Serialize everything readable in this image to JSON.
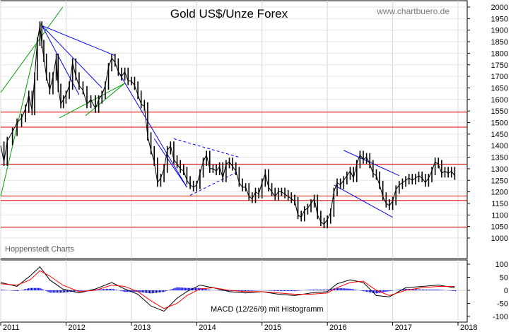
{
  "chart_data": [
    {
      "type": "line",
      "subtype": "candlestick",
      "title": "Gold US$/Unze Forex",
      "watermark": "www.chartbuero.de",
      "source": "Hoppenstedt Charts",
      "x_axis": {
        "labels": [
          "2011",
          "2012",
          "2013",
          "2014",
          "2015",
          "2016",
          "2017",
          "2018"
        ],
        "range": [
          2011.0,
          2018.0
        ]
      },
      "y_axis": {
        "range": [
          1000,
          2000
        ],
        "position": "right",
        "step": 50,
        "tick_labels": [
          "1000",
          "1050",
          "1100",
          "1150",
          "1200",
          "1250",
          "1300",
          "1350",
          "1400",
          "1450",
          "1500",
          "1550",
          "1600",
          "1650",
          "1700",
          "1750",
          "1800",
          "1850",
          "1900",
          "1950",
          "2000"
        ]
      },
      "horizontal_lines": [
        1545,
        1480,
        1320,
        1182,
        1163,
        1047
      ],
      "series": [
        {
          "color": "#000000",
          "points": [
            [
              2011.0,
              1400
            ],
            [
              2011.05,
              1330
            ],
            [
              2011.1,
              1420
            ],
            [
              2011.18,
              1460
            ],
            [
              2011.25,
              1500
            ],
            [
              2011.32,
              1520
            ],
            [
              2011.38,
              1560
            ],
            [
              2011.43,
              1620
            ],
            [
              2011.48,
              1550
            ],
            [
              2011.52,
              1700
            ],
            [
              2011.56,
              1850
            ],
            [
              2011.6,
              1920
            ],
            [
              2011.63,
              1840
            ],
            [
              2011.66,
              1780
            ],
            [
              2011.7,
              1700
            ],
            [
              2011.75,
              1640
            ],
            [
              2011.8,
              1700
            ],
            [
              2011.85,
              1780
            ],
            [
              2011.88,
              1650
            ],
            [
              2011.92,
              1580
            ],
            [
              2011.96,
              1600
            ],
            [
              2012.0,
              1620
            ],
            [
              2012.05,
              1660
            ],
            [
              2012.1,
              1760
            ],
            [
              2012.15,
              1700
            ],
            [
              2012.2,
              1660
            ],
            [
              2012.26,
              1640
            ],
            [
              2012.32,
              1580
            ],
            [
              2012.38,
              1600
            ],
            [
              2012.45,
              1560
            ],
            [
              2012.5,
              1600
            ],
            [
              2012.55,
              1620
            ],
            [
              2012.6,
              1660
            ],
            [
              2012.65,
              1740
            ],
            [
              2012.7,
              1780
            ],
            [
              2012.75,
              1760
            ],
            [
              2012.8,
              1720
            ],
            [
              2012.85,
              1700
            ],
            [
              2012.9,
              1720
            ],
            [
              2012.95,
              1680
            ],
            [
              2013.0,
              1680
            ],
            [
              2013.05,
              1660
            ],
            [
              2013.1,
              1620
            ],
            [
              2013.15,
              1580
            ],
            [
              2013.2,
              1570
            ],
            [
              2013.25,
              1440
            ],
            [
              2013.3,
              1380
            ],
            [
              2013.35,
              1330
            ],
            [
              2013.4,
              1240
            ],
            [
              2013.45,
              1260
            ],
            [
              2013.5,
              1300
            ],
            [
              2013.55,
              1380
            ],
            [
              2013.6,
              1400
            ],
            [
              2013.65,
              1340
            ],
            [
              2013.7,
              1320
            ],
            [
              2013.75,
              1300
            ],
            [
              2013.8,
              1290
            ],
            [
              2013.85,
              1250
            ],
            [
              2013.9,
              1230
            ],
            [
              2013.95,
              1220
            ],
            [
              2014.0,
              1230
            ],
            [
              2014.05,
              1280
            ],
            [
              2014.1,
              1330
            ],
            [
              2014.15,
              1360
            ],
            [
              2014.2,
              1300
            ],
            [
              2014.25,
              1300
            ],
            [
              2014.3,
              1290
            ],
            [
              2014.35,
              1310
            ],
            [
              2014.4,
              1260
            ],
            [
              2014.45,
              1320
            ],
            [
              2014.5,
              1330
            ],
            [
              2014.55,
              1310
            ],
            [
              2014.6,
              1290
            ],
            [
              2014.65,
              1240
            ],
            [
              2014.7,
              1220
            ],
            [
              2014.75,
              1220
            ],
            [
              2014.8,
              1180
            ],
            [
              2014.85,
              1170
            ],
            [
              2014.9,
              1200
            ],
            [
              2014.95,
              1190
            ],
            [
              2015.0,
              1240
            ],
            [
              2015.05,
              1280
            ],
            [
              2015.1,
              1220
            ],
            [
              2015.15,
              1200
            ],
            [
              2015.2,
              1180
            ],
            [
              2015.25,
              1200
            ],
            [
              2015.3,
              1200
            ],
            [
              2015.35,
              1190
            ],
            [
              2015.4,
              1180
            ],
            [
              2015.45,
              1170
            ],
            [
              2015.5,
              1160
            ],
            [
              2015.55,
              1100
            ],
            [
              2015.6,
              1090
            ],
            [
              2015.65,
              1120
            ],
            [
              2015.7,
              1130
            ],
            [
              2015.75,
              1150
            ],
            [
              2015.8,
              1170
            ],
            [
              2015.85,
              1100
            ],
            [
              2015.9,
              1070
            ],
            [
              2015.95,
              1060
            ],
            [
              2016.0,
              1080
            ],
            [
              2016.05,
              1110
            ],
            [
              2016.1,
              1200
            ],
            [
              2016.15,
              1240
            ],
            [
              2016.2,
              1230
            ],
            [
              2016.25,
              1250
            ],
            [
              2016.3,
              1270
            ],
            [
              2016.35,
              1290
            ],
            [
              2016.4,
              1260
            ],
            [
              2016.45,
              1320
            ],
            [
              2016.5,
              1360
            ],
            [
              2016.55,
              1340
            ],
            [
              2016.6,
              1350
            ],
            [
              2016.65,
              1320
            ],
            [
              2016.7,
              1280
            ],
            [
              2016.75,
              1270
            ],
            [
              2016.8,
              1230
            ],
            [
              2016.85,
              1180
            ],
            [
              2016.9,
              1150
            ],
            [
              2016.95,
              1140
            ],
            [
              2017.0,
              1160
            ],
            [
              2017.05,
              1210
            ],
            [
              2017.1,
              1230
            ],
            [
              2017.15,
              1240
            ],
            [
              2017.2,
              1250
            ],
            [
              2017.25,
              1260
            ],
            [
              2017.3,
              1250
            ],
            [
              2017.35,
              1260
            ],
            [
              2017.4,
              1270
            ],
            [
              2017.45,
              1260
            ],
            [
              2017.5,
              1240
            ],
            [
              2017.55,
              1260
            ],
            [
              2017.6,
              1290
            ],
            [
              2017.65,
              1330
            ],
            [
              2017.7,
              1320
            ],
            [
              2017.75,
              1280
            ],
            [
              2017.8,
              1290
            ],
            [
              2017.85,
              1280
            ],
            [
              2017.9,
              1290
            ],
            [
              2017.95,
              1270
            ]
          ]
        }
      ],
      "trend_lines": [
        {
          "color": "#00a000",
          "style": "solid",
          "points": [
            [
              2011.0,
              1180
            ],
            [
              2011.62,
              1930
            ]
          ]
        },
        {
          "color": "#00a000",
          "style": "solid",
          "points": [
            [
              2011.0,
              1630
            ],
            [
              2011.95,
              2000
            ]
          ]
        },
        {
          "color": "#00a000",
          "style": "solid",
          "points": [
            [
              2011.9,
              1520
            ],
            [
              2012.9,
              1670
            ]
          ]
        },
        {
          "color": "#00a000",
          "style": "solid",
          "points": [
            [
              2012.3,
              1530
            ],
            [
              2012.9,
              1670
            ]
          ]
        },
        {
          "color": "#0000ff",
          "style": "solid",
          "points": [
            [
              2011.63,
              1920
            ],
            [
              2012.75,
              1790
            ]
          ]
        },
        {
          "color": "#0000ff",
          "style": "solid",
          "points": [
            [
              2011.63,
              1920
            ],
            [
              2012.55,
              1650
            ]
          ]
        },
        {
          "color": "#0000ff",
          "style": "solid",
          "points": [
            [
              2011.63,
              1920
            ],
            [
              2012.2,
              1620
            ]
          ]
        },
        {
          "color": "#0000ff",
          "style": "solid",
          "points": [
            [
              2012.8,
              1720
            ],
            [
              2013.85,
              1220
            ]
          ]
        },
        {
          "color": "#0000ff",
          "style": "solid",
          "points": [
            [
              2013.35,
              1430
            ],
            [
              2013.85,
              1220
            ]
          ]
        },
        {
          "color": "#0000ff",
          "style": "dashed",
          "points": [
            [
              2013.65,
              1430
            ],
            [
              2014.65,
              1350
            ]
          ]
        },
        {
          "color": "#0000ff",
          "style": "dashed",
          "points": [
            [
              2013.9,
              1185
            ],
            [
              2014.65,
              1290
            ]
          ]
        },
        {
          "color": "#0000ff",
          "style": "solid",
          "points": [
            [
              2016.25,
              1380
            ],
            [
              2017.1,
              1270
            ]
          ]
        },
        {
          "color": "#0000ff",
          "style": "solid",
          "points": [
            [
              2016.1,
              1230
            ],
            [
              2017.0,
              1090
            ]
          ]
        }
      ]
    },
    {
      "type": "line",
      "title": "",
      "label": "MACD (12/26/9) mit Histogramm",
      "y_axis": {
        "range": [
          -100,
          100
        ],
        "position": "right",
        "tick_labels": [
          "-100",
          "-50",
          "0",
          "50",
          "100"
        ]
      },
      "series": [
        {
          "color": "#000000",
          "x": [
            2011.0,
            2011.25,
            2011.45,
            2011.6,
            2011.75,
            2011.95,
            2012.2,
            2012.45,
            2012.7,
            2012.9,
            2013.1,
            2013.3,
            2013.5,
            2013.7,
            2013.85,
            2014.05,
            2014.25,
            2014.5,
            2014.75,
            2015.0,
            2015.25,
            2015.5,
            2015.75,
            2016.0,
            2016.15,
            2016.35,
            2016.55,
            2016.75,
            2016.95,
            2017.2,
            2017.45,
            2017.7,
            2017.95
          ],
          "values": [
            30,
            15,
            55,
            90,
            40,
            5,
            -10,
            5,
            30,
            5,
            -15,
            -60,
            -80,
            -30,
            -5,
            20,
            10,
            -5,
            -10,
            -5,
            -15,
            -20,
            -10,
            -5,
            25,
            40,
            30,
            -20,
            -25,
            10,
            15,
            20,
            10
          ]
        },
        {
          "color": "#ff0000",
          "x": [
            2011.0,
            2011.25,
            2011.45,
            2011.6,
            2011.75,
            2011.95,
            2012.2,
            2012.45,
            2012.7,
            2012.9,
            2013.1,
            2013.3,
            2013.5,
            2013.7,
            2013.85,
            2014.05,
            2014.25,
            2014.5,
            2014.75,
            2015.0,
            2015.25,
            2015.5,
            2015.75,
            2016.0,
            2016.15,
            2016.35,
            2016.55,
            2016.75,
            2016.95,
            2017.2,
            2017.45,
            2017.7,
            2017.95
          ],
          "values": [
            25,
            20,
            40,
            75,
            55,
            20,
            -5,
            0,
            20,
            15,
            -5,
            -40,
            -70,
            -50,
            -20,
            5,
            10,
            0,
            -5,
            -5,
            -10,
            -15,
            -15,
            -10,
            10,
            30,
            35,
            0,
            -20,
            0,
            10,
            15,
            15
          ]
        }
      ],
      "histogram": {
        "color": "#0000ff",
        "description": "MACD minus signal"
      }
    }
  ]
}
